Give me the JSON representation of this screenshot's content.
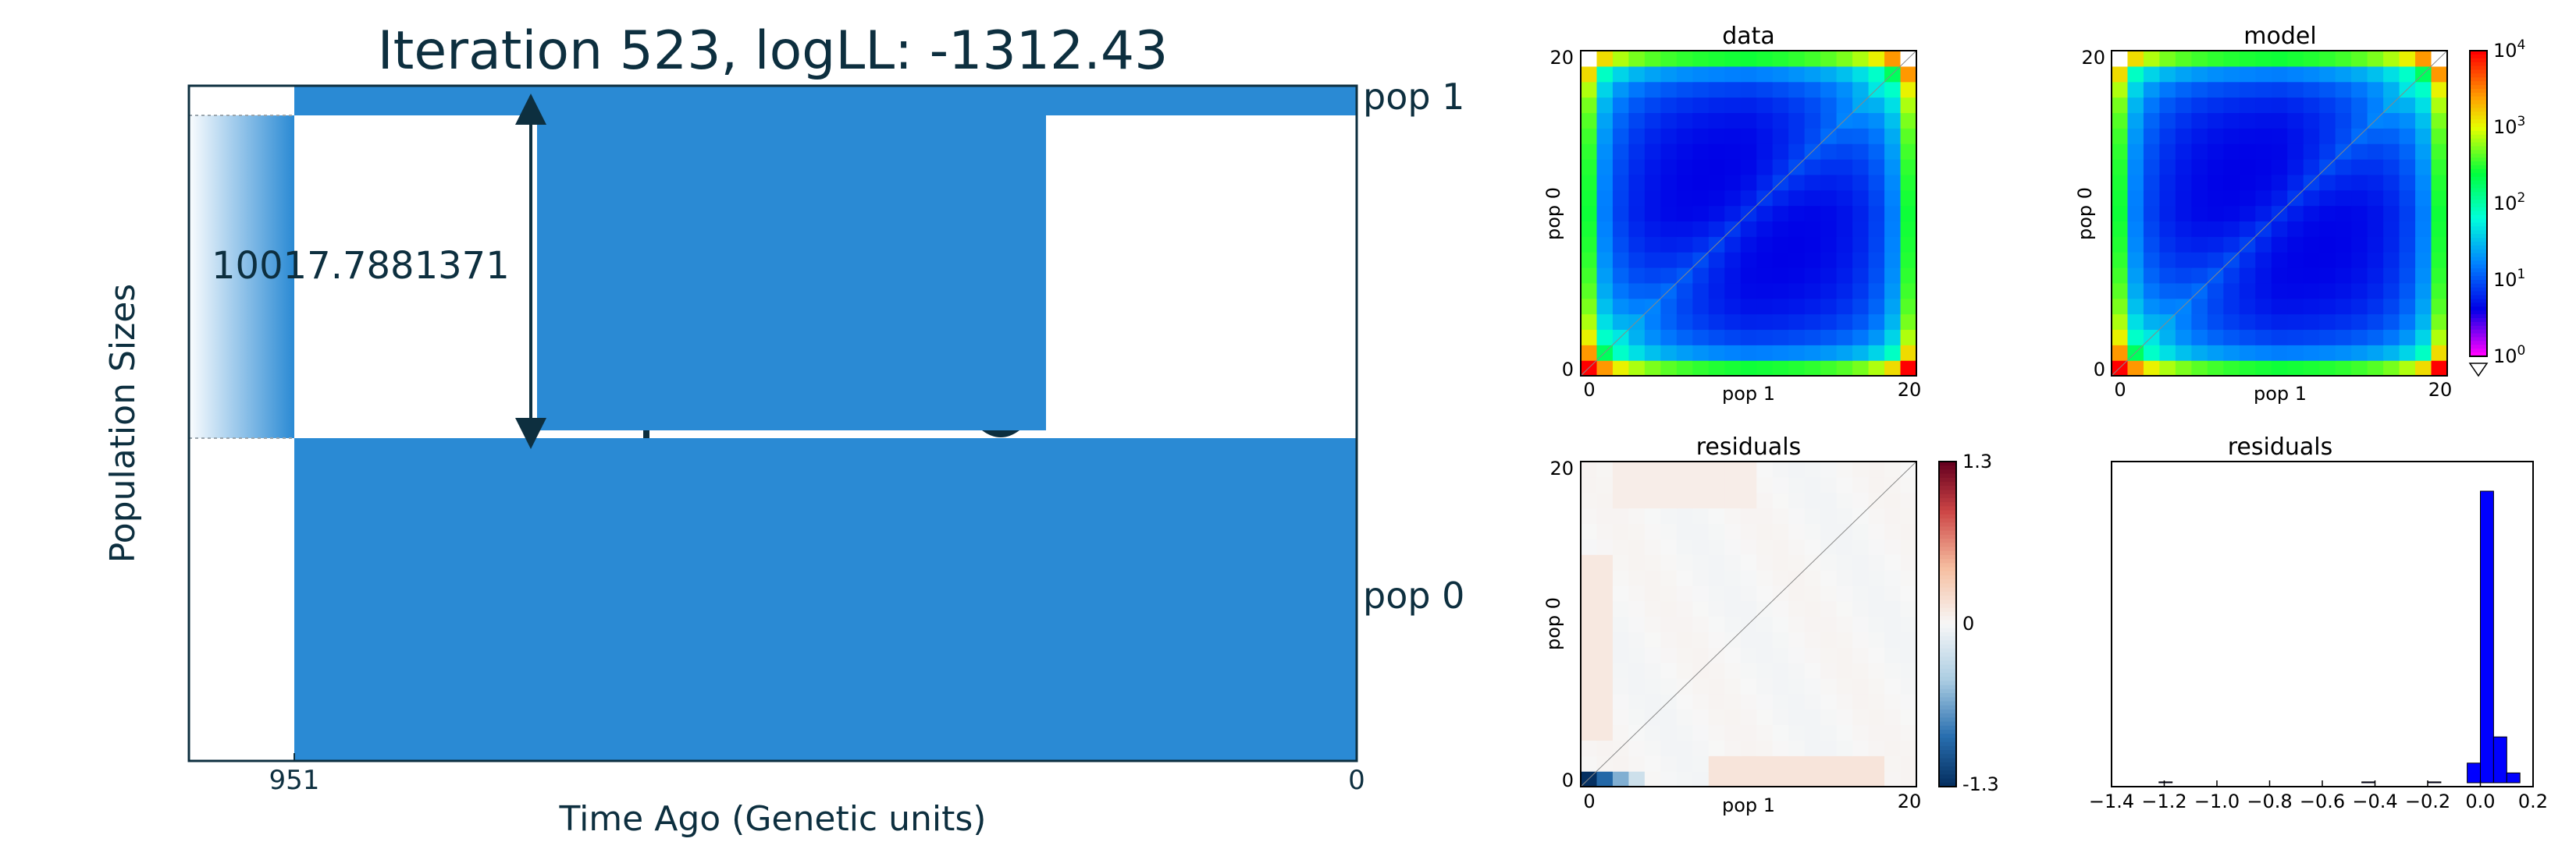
{
  "title": "Iteration 523, logLL:   -1312.43",
  "colors": {
    "fill_blue": "#2a8ad4",
    "text_dark": "#0d2f3f",
    "histogram_blue": "#0000ff"
  },
  "chart_data": [
    {
      "type": "area",
      "name": "demography",
      "title": "Iteration 523, logLL:   -1312.43",
      "xlabel": "Time Ago (Genetic units)",
      "ylabel": "Population Sizes",
      "x_ticks": [
        "951",
        "0"
      ],
      "populations": [
        "pop 1",
        "pop 0"
      ],
      "size_annotation": "10017.7881371",
      "split_time": 951
    },
    {
      "type": "heatmap",
      "name": "data",
      "title": "data",
      "xlabel": "pop 1",
      "ylabel": "pop 0",
      "x_ticks": [
        "0",
        "20"
      ],
      "y_ticks": [
        "0",
        "20"
      ],
      "grid_size": 21
    },
    {
      "type": "heatmap",
      "name": "model",
      "title": "model",
      "xlabel": "pop 1",
      "ylabel": "pop 0",
      "x_ticks": [
        "0",
        "20"
      ],
      "y_ticks": [
        "0",
        "20"
      ],
      "grid_size": 21,
      "colorbar": {
        "scale": "log",
        "ticks": [
          "10^0",
          "10^1",
          "10^2",
          "10^3",
          "10^4"
        ]
      }
    },
    {
      "type": "heatmap",
      "name": "residuals",
      "title": "residuals",
      "xlabel": "pop 1",
      "ylabel": "pop 0",
      "x_ticks": [
        "0",
        "20"
      ],
      "y_ticks": [
        "0",
        "20"
      ],
      "grid_size": 21,
      "colorbar": {
        "ticks": [
          "1.3",
          "0",
          "-1.3"
        ],
        "range": [
          -1.3,
          1.3
        ]
      }
    },
    {
      "type": "bar",
      "name": "residuals-histogram",
      "title": "residuals",
      "x_ticks": [
        "−1.4",
        "−1.2",
        "−1.0",
        "−0.8",
        "−0.6",
        "−0.4",
        "−0.2",
        "0.0",
        "0.2"
      ],
      "xlim": [
        -1.4,
        0.2
      ],
      "bins": [
        {
          "x0": -0.05,
          "x1": 0.0,
          "count": 12
        },
        {
          "x0": 0.0,
          "x1": 0.05,
          "count": 178
        },
        {
          "x0": 0.05,
          "x1": 0.1,
          "count": 28
        },
        {
          "x0": 0.1,
          "x1": 0.15,
          "count": 6
        },
        {
          "x0": -1.22,
          "x1": -1.17,
          "count": 0.5
        },
        {
          "x0": -0.45,
          "x1": -0.4,
          "count": 0.5
        },
        {
          "x0": -0.2,
          "x1": -0.15,
          "count": 0.5
        }
      ]
    }
  ]
}
